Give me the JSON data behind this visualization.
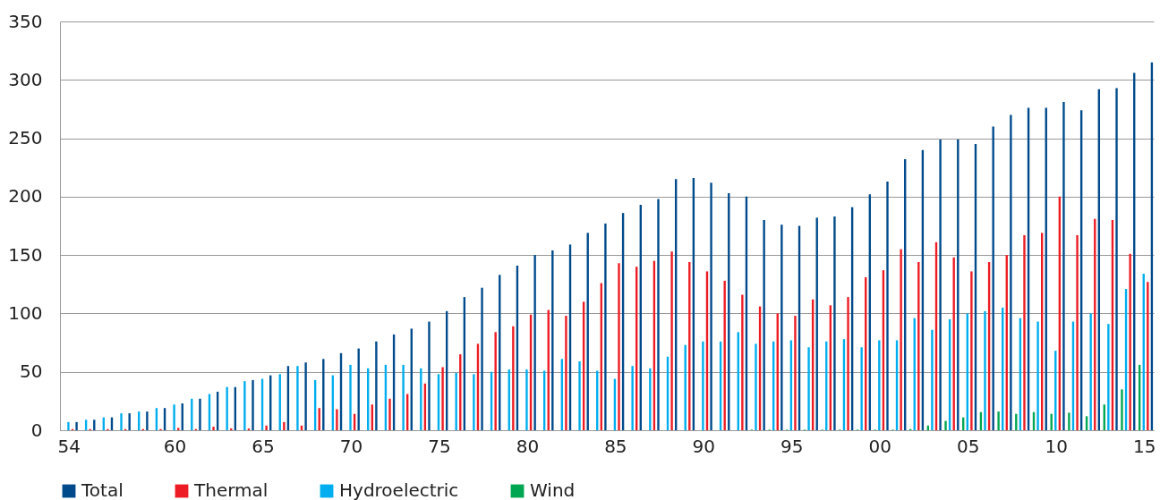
{
  "chart_data": {
    "type": "bar",
    "categories": [
      "54",
      null,
      null,
      null,
      null,
      null,
      "60",
      null,
      null,
      null,
      null,
      "65",
      null,
      null,
      null,
      null,
      "70",
      null,
      null,
      null,
      null,
      "75",
      null,
      null,
      null,
      null,
      "80",
      null,
      null,
      null,
      null,
      "85",
      null,
      null,
      null,
      null,
      "90",
      null,
      null,
      null,
      null,
      "95",
      null,
      null,
      null,
      null,
      "00",
      null,
      null,
      null,
      null,
      "05",
      null,
      null,
      null,
      null,
      "10",
      null,
      null,
      null,
      null,
      "15"
    ],
    "series": [
      {
        "name": "Total",
        "color": "#004a8c",
        "values": [
          7,
          9,
          11,
          14.5,
          16,
          19,
          23,
          27,
          33,
          37,
          43,
          47,
          55,
          58,
          61,
          66,
          70,
          76,
          82,
          87,
          93,
          102,
          114,
          122,
          133,
          141,
          150,
          154,
          159,
          169,
          177,
          186,
          193,
          198,
          215,
          216,
          212,
          203,
          200,
          180,
          176,
          175,
          182,
          183,
          191,
          202,
          213,
          232,
          240,
          249,
          249,
          245,
          260,
          270,
          276,
          276,
          281,
          274,
          292,
          293,
          306,
          315
        ]
      },
      {
        "name": "Thermal",
        "color": "#ed1c24",
        "values": [
          1,
          1,
          1,
          1,
          1,
          1,
          2,
          1,
          3,
          1.5,
          1.5,
          4,
          7,
          4,
          19,
          18,
          14,
          22,
          27,
          31,
          40,
          54,
          65,
          74,
          84,
          89,
          99,
          103,
          98,
          110,
          126,
          143,
          140,
          145,
          153,
          144,
          136,
          128,
          116,
          106,
          100,
          98,
          112,
          107,
          114,
          131,
          137,
          155,
          144,
          161,
          148,
          136,
          144,
          150,
          167,
          169,
          200,
          167,
          181,
          180,
          151,
          127
        ]
      },
      {
        "name": "Hydroelectric",
        "color": "#00aeef",
        "values": [
          7,
          9,
          11,
          14.5,
          16,
          19,
          22,
          27,
          31,
          37,
          42,
          44,
          48,
          55,
          43,
          47,
          56,
          53,
          56,
          56,
          53,
          48,
          49,
          48,
          50,
          52,
          52,
          51,
          61,
          59,
          51,
          44,
          55,
          53,
          63,
          73,
          76,
          76,
          84,
          74,
          76,
          77,
          71,
          76,
          78,
          71,
          77,
          77,
          96,
          86,
          95,
          100,
          102,
          105,
          96,
          93,
          68,
          93,
          100,
          91,
          121,
          134
        ]
      },
      {
        "name": "Wind",
        "color": "#00a651",
        "values": [
          null,
          null,
          null,
          null,
          null,
          null,
          null,
          null,
          null,
          null,
          null,
          null,
          null,
          null,
          null,
          null,
          null,
          null,
          null,
          null,
          null,
          null,
          null,
          null,
          null,
          null,
          null,
          null,
          null,
          null,
          null,
          null,
          null,
          null,
          null,
          null,
          null,
          null,
          null,
          0.5,
          0.5,
          0.5,
          0.5,
          0.5,
          0.5,
          0.5,
          0.5,
          0.5,
          1,
          4,
          8,
          11,
          15.5,
          16,
          14,
          15.5,
          14,
          15,
          12,
          22,
          35,
          56
        ]
      }
    ],
    "ylim": [
      0,
      350
    ],
    "yticks": [
      0,
      50,
      100,
      150,
      200,
      250,
      300,
      350
    ],
    "grid": "y",
    "legend": "bottom"
  }
}
